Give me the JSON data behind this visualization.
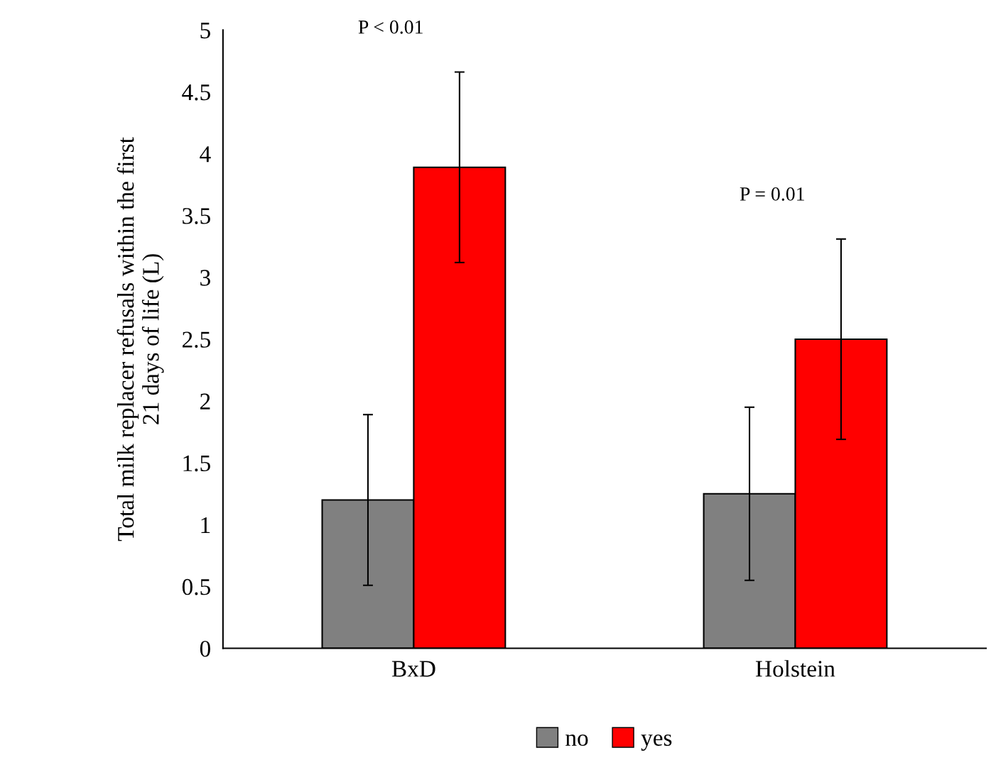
{
  "chart_data": {
    "type": "bar",
    "ylabel": "Total milk replacer refusals within the first\n21 days of life (L)",
    "categories": [
      "BxD",
      "Holstein"
    ],
    "series": [
      {
        "name": "no",
        "color": "#808080",
        "values": [
          1.2,
          1.25
        ],
        "errors": [
          0.69,
          0.7
        ]
      },
      {
        "name": "yes",
        "color": "#ff0000",
        "values": [
          3.89,
          2.5
        ],
        "errors": [
          0.77,
          0.81
        ]
      }
    ],
    "ylim": [
      0,
      5
    ],
    "yticks": [
      0,
      0.5,
      1,
      1.5,
      2,
      2.5,
      3,
      3.5,
      4,
      4.5,
      5
    ],
    "annotations": [
      "P < 0.01",
      "P = 0.01"
    ],
    "grid": false,
    "legend": "bottom"
  }
}
